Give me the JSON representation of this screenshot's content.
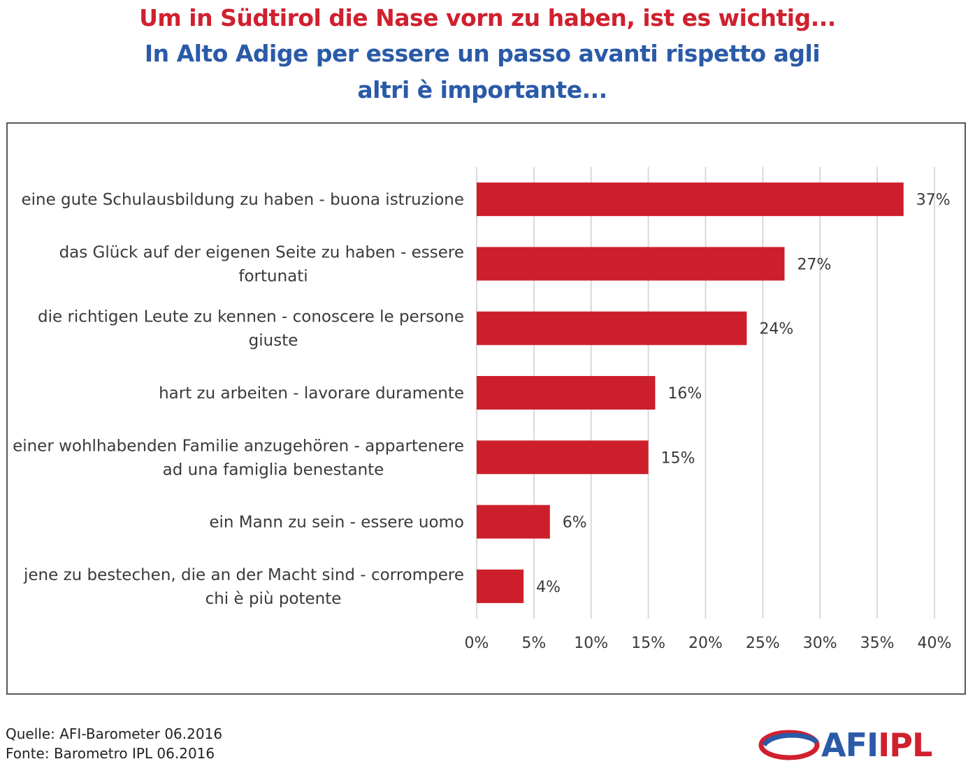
{
  "title": {
    "de": "Um in Südtirol die Nase vorn zu haben, ist es wichtig...",
    "it": "In Alto Adige per essere un passo avanti rispetto agli altri è importante..."
  },
  "chart_data": {
    "type": "bar",
    "orientation": "horizontal",
    "categories": [
      "eine gute Schulausbildung zu haben - buona istruzione",
      "das Glück auf der eigenen Seite zu haben - essere fortunati",
      "die richtigen Leute zu kennen - conoscere le persone giuste",
      "hart zu arbeiten - lavorare duramente",
      "einer wohlhabenden Familie anzugehören - appartenere ad una famiglia benestante",
      "ein Mann zu sein - essere uomo",
      "jene zu bestechen, die an der Macht sind - corrompere chi è più potente"
    ],
    "category_lines": [
      [
        "eine gute Schulausbildung zu haben - buona istruzione"
      ],
      [
        "das Glück auf der eigenen Seite zu haben - essere",
        "fortunati"
      ],
      [
        "die richtigen Leute zu kennen - conoscere le persone",
        "giuste"
      ],
      [
        "hart zu arbeiten - lavorare duramente"
      ],
      [
        "einer wohlhabenden Familie anzugehören - appartenere",
        "ad una famiglia benestante"
      ],
      [
        "ein Mann zu sein - essere uomo"
      ],
      [
        "jene zu bestechen, die an der Macht sind - corrompere",
        "chi è più potente"
      ]
    ],
    "values": [
      37.3,
      26.9,
      23.6,
      15.6,
      15.0,
      6.4,
      4.1
    ],
    "value_labels": [
      "37%",
      "27%",
      "24%",
      "16%",
      "15%",
      "6%",
      "4%"
    ],
    "xlim": [
      0,
      40
    ],
    "x_ticks": [
      0,
      5,
      10,
      15,
      20,
      25,
      30,
      35,
      40
    ],
    "x_tick_labels": [
      "0%",
      "5%",
      "10%",
      "15%",
      "20%",
      "25%",
      "30%",
      "35%",
      "40%"
    ],
    "grid": true,
    "bar_color": "#cc1f2b"
  },
  "source": {
    "de": "Quelle: AFI-Barometer 06.2016",
    "it": "Fonte: Barometro IPL 06.2016"
  },
  "logo": {
    "part1": "AFI",
    "part2": "IPL",
    "colors": {
      "blue": "#2a5aa8",
      "red": "#d0202e"
    }
  }
}
